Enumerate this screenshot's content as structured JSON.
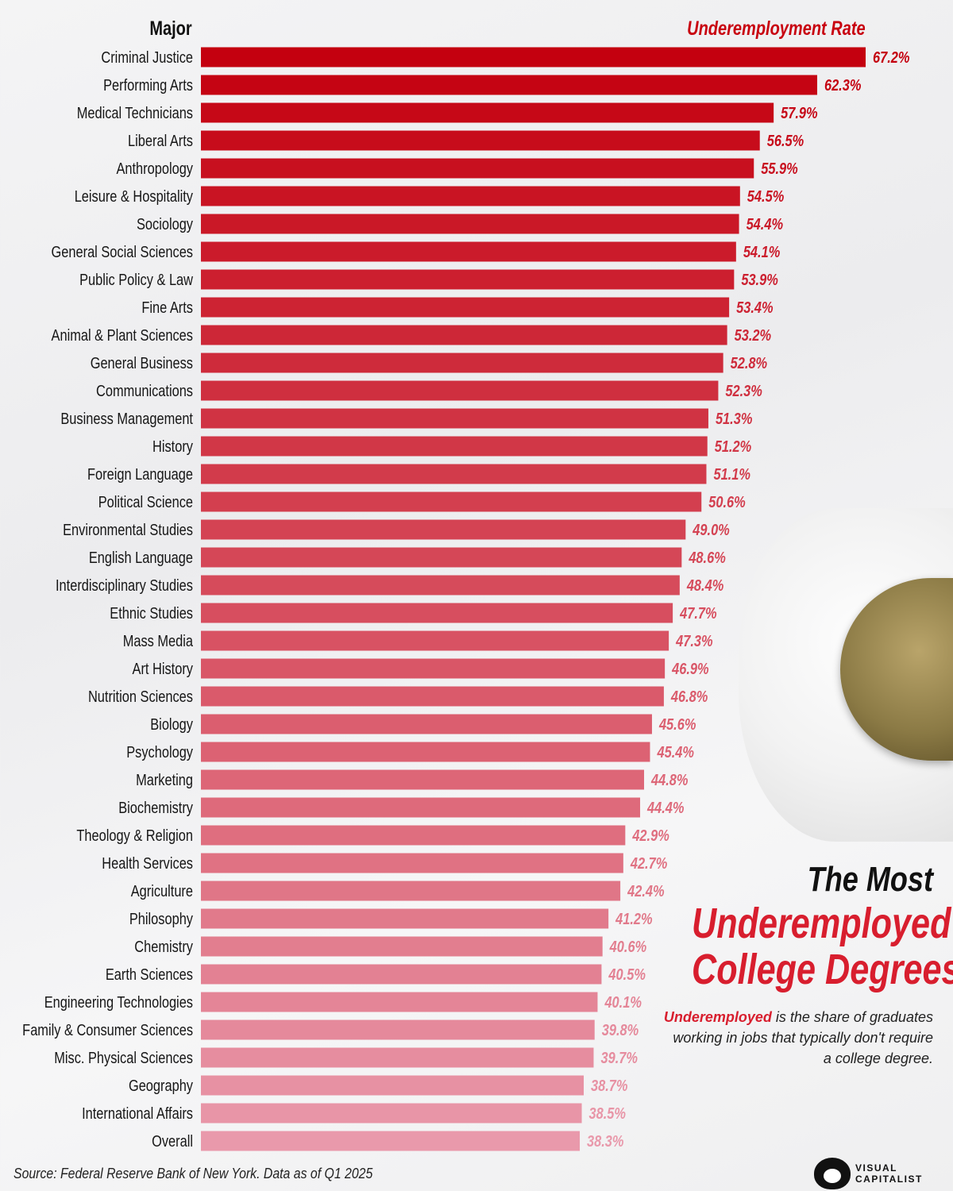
{
  "chart_data": {
    "type": "bar",
    "orientation": "horizontal",
    "title": "The Most Underemployed College Degrees",
    "title_parts": [
      "The Most",
      "Underemployed",
      "College Degrees"
    ],
    "description_term": "Underemployed",
    "description_rest": "is the share of graduates working in jobs that typically don't require a college degree.",
    "category_header": "Major",
    "value_header": "Underemployment Rate",
    "unit": "%",
    "categories": [
      "Criminal Justice",
      "Performing Arts",
      "Medical Technicians",
      "Liberal Arts",
      "Anthropology",
      "Leisure & Hospitality",
      "Sociology",
      "General Social Sciences",
      "Public Policy & Law",
      "Fine Arts",
      "Animal & Plant Sciences",
      "General Business",
      "Communications",
      "Business Management",
      "History",
      "Foreign Language",
      "Political Science",
      "Environmental Studies",
      "English Language",
      "Interdisciplinary Studies",
      "Ethnic Studies",
      "Mass Media",
      "Art History",
      "Nutrition Sciences",
      "Biology",
      "Psychology",
      "Marketing",
      "Biochemistry",
      "Theology & Religion",
      "Health Services",
      "Agriculture",
      "Philosophy",
      "Chemistry",
      "Earth Sciences",
      "Engineering Technologies",
      "Family & Consumer Sciences",
      "Misc. Physical Sciences",
      "Geography",
      "International Affairs",
      "Overall"
    ],
    "values": [
      67.2,
      62.3,
      57.9,
      56.5,
      55.9,
      54.5,
      54.4,
      54.1,
      53.9,
      53.4,
      53.2,
      52.8,
      52.3,
      51.3,
      51.2,
      51.1,
      50.6,
      49.0,
      48.6,
      48.4,
      47.7,
      47.3,
      46.9,
      46.8,
      45.6,
      45.4,
      44.8,
      44.4,
      42.9,
      42.7,
      42.4,
      41.2,
      40.6,
      40.5,
      40.1,
      39.8,
      39.7,
      38.7,
      38.5,
      38.3
    ],
    "value_labels": [
      "67.2%",
      "62.3%",
      "57.9%",
      "56.5%",
      "55.9%",
      "54.5%",
      "54.4%",
      "54.1%",
      "53.9%",
      "53.4%",
      "53.2%",
      "52.8%",
      "52.3%",
      "51.3%",
      "51.2%",
      "51.1%",
      "50.6%",
      "49.0%",
      "48.6%",
      "48.4%",
      "47.7%",
      "47.3%",
      "46.9%",
      "46.8%",
      "45.6%",
      "45.4%",
      "44.8%",
      "44.4%",
      "42.9%",
      "42.7%",
      "42.4%",
      "41.2%",
      "40.6%",
      "40.5%",
      "40.1%",
      "39.8%",
      "39.7%",
      "38.7%",
      "38.5%",
      "38.3%"
    ],
    "xlim": [
      0,
      67.2
    ],
    "grid": false,
    "colors": {
      "top": "#c4000f",
      "bottom": "#e999ab"
    }
  },
  "source": "Source: Federal Reserve Bank of New York. Data as of Q1 2025",
  "logo": {
    "line1": "VISUAL",
    "line2": "CAPITALIST"
  }
}
